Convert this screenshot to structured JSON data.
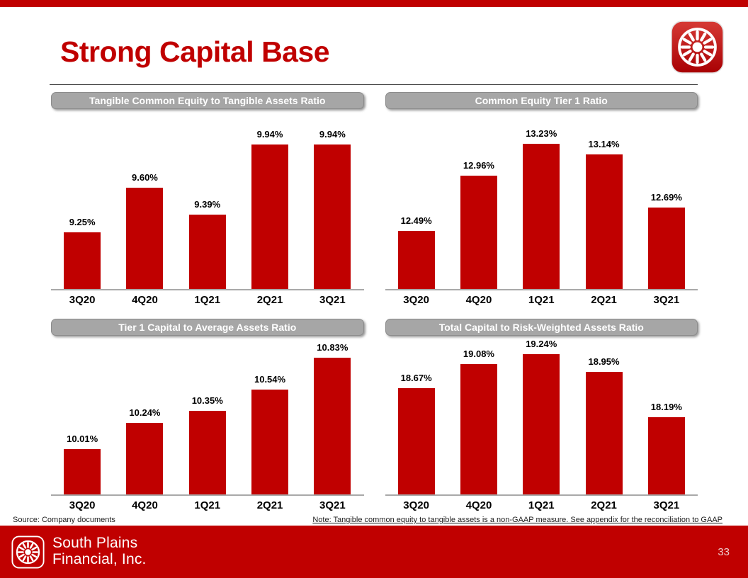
{
  "slide": {
    "title": "Strong Capital Base",
    "page_number": "33",
    "footer": {
      "source_note": "Source: Company documents",
      "gaap_note": "Note: Tangible common equity to tangible assets is a non-GAAP measure. See appendix for the reconciliation to GAAP"
    },
    "brand": {
      "line1": "South Plains",
      "line2": "Financial, Inc."
    },
    "colors": {
      "accent_red": "#C00000",
      "bar_red": "#C00000",
      "header_gray": "#A6A6A6",
      "band_red": "#C00000"
    }
  },
  "chart_data": [
    {
      "type": "bar",
      "title": "Tangible Common Equity to Tangible Assets Ratio",
      "categories": [
        "3Q20",
        "4Q20",
        "1Q21",
        "2Q21",
        "3Q21"
      ],
      "values": [
        9.25,
        9.6,
        9.39,
        9.94,
        9.94
      ],
      "labels": [
        "9.25%",
        "9.60%",
        "9.39%",
        "9.94%",
        "9.94%"
      ],
      "ylim": [
        8.8,
        10.2
      ],
      "bar_color": "#C00000",
      "grid": false,
      "legend": "none"
    },
    {
      "type": "bar",
      "title": "Common Equity Tier 1 Ratio",
      "categories": [
        "3Q20",
        "4Q20",
        "1Q21",
        "2Q21",
        "3Q21"
      ],
      "values": [
        12.49,
        12.96,
        13.23,
        13.14,
        12.69
      ],
      "labels": [
        "12.49%",
        "12.96%",
        "13.23%",
        "13.14%",
        "12.69%"
      ],
      "ylim": [
        12.0,
        13.5
      ],
      "bar_color": "#C00000",
      "grid": false,
      "legend": "none"
    },
    {
      "type": "bar",
      "title": "Tier 1 Capital to Average Assets Ratio",
      "categories": [
        "3Q20",
        "4Q20",
        "1Q21",
        "2Q21",
        "3Q21"
      ],
      "values": [
        10.01,
        10.24,
        10.35,
        10.54,
        10.83
      ],
      "labels": [
        "10.01%",
        "10.24%",
        "10.35%",
        "10.54%",
        "10.83%"
      ],
      "ylim": [
        9.6,
        11.0
      ],
      "bar_color": "#C00000",
      "grid": false,
      "legend": "none"
    },
    {
      "type": "bar",
      "title": "Total Capital to Risk-Weighted Assets Ratio",
      "categories": [
        "3Q20",
        "4Q20",
        "1Q21",
        "2Q21",
        "3Q21"
      ],
      "values": [
        18.67,
        19.08,
        19.24,
        18.95,
        18.19
      ],
      "labels": [
        "18.67%",
        "19.08%",
        "19.24%",
        "18.95%",
        "18.19%"
      ],
      "ylim": [
        16.9,
        19.5
      ],
      "bar_color": "#C00000",
      "grid": false,
      "legend": "none"
    }
  ]
}
